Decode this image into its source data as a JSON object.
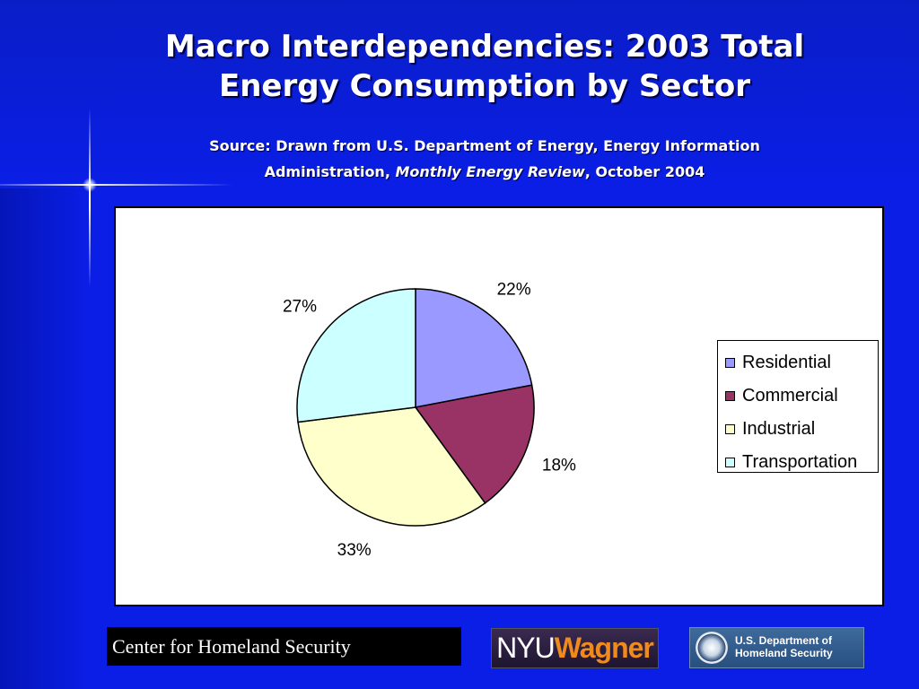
{
  "slide": {
    "title_line1": "Macro Interdependencies: 2003 Total",
    "title_line2": "Energy Consumption by Sector",
    "source_line1": "Source:  Drawn from U.S. Department of Energy, Energy Information",
    "source_line2_prefix": "Administration, ",
    "source_line2_italic": "Monthly Energy Review",
    "source_line2_suffix": ", October 2004"
  },
  "chart_data": {
    "type": "pie",
    "title": "",
    "categories": [
      "Residential",
      "Commercial",
      "Industrial",
      "Transportation"
    ],
    "values": [
      22,
      18,
      33,
      27
    ],
    "labels": [
      "22%",
      "18%",
      "33%",
      "27%"
    ],
    "colors": [
      "#9999ff",
      "#993366",
      "#ffffcc",
      "#ccffff"
    ],
    "legend_position": "right"
  },
  "footer": {
    "center_text": "Center for Homeland Security",
    "nyu_part1": "NYU",
    "nyu_part2": "Wagner",
    "dhs_line1": "U.S. Department of",
    "dhs_line2": "Homeland Security"
  }
}
